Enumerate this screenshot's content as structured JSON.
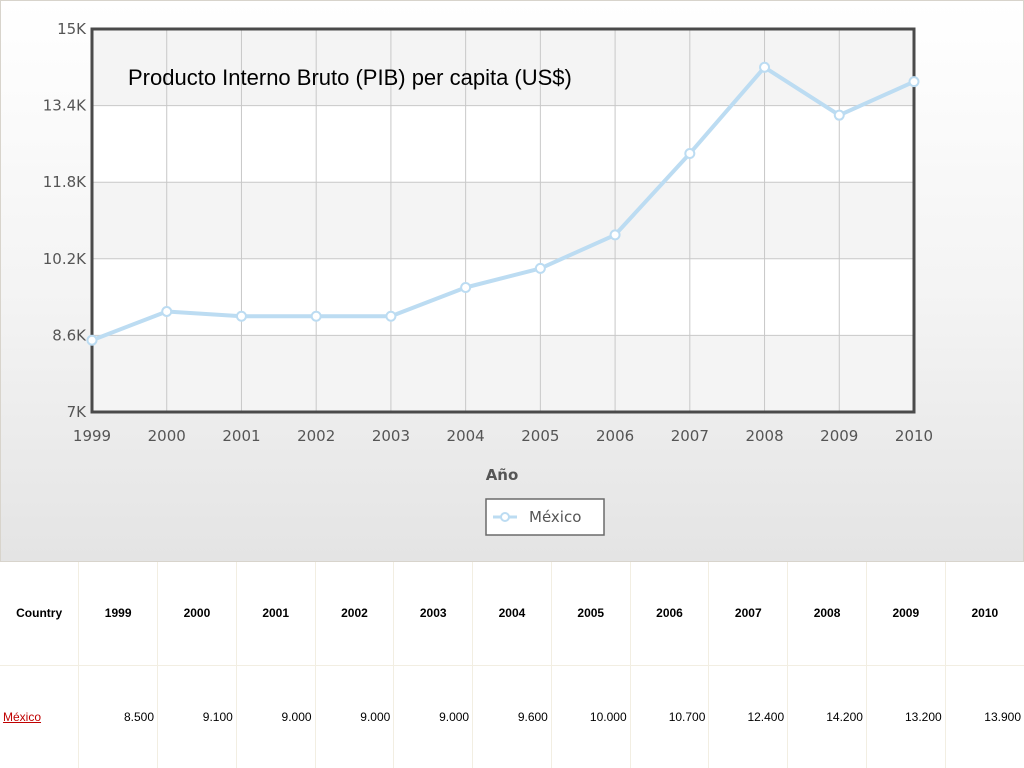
{
  "chart_data": {
    "type": "line",
    "title": "Producto Interno Bruto (PIB) per capita (US$)",
    "xlabel": "Año",
    "ylabel": "",
    "categories": [
      "1999",
      "2000",
      "2001",
      "2002",
      "2003",
      "2004",
      "2005",
      "2006",
      "2007",
      "2008",
      "2009",
      "2010"
    ],
    "series": [
      {
        "name": "México",
        "values": [
          8500,
          9100,
          9000,
          9000,
          9000,
          9600,
          10000,
          10700,
          12400,
          14200,
          13200,
          13900
        ]
      }
    ],
    "ylim": [
      7000,
      15000
    ],
    "yticks": [
      7000,
      8600,
      10200,
      11800,
      13400,
      15000
    ],
    "ytick_labels": [
      "7K",
      "8.6K",
      "10.2K",
      "11.8K",
      "13.4K",
      "15K"
    ],
    "grid": true,
    "legend_position": "bottom-center",
    "colors": {
      "line": "#bcdcf2",
      "marker_fill": "#ffffff",
      "grid": "#c8c8c8",
      "plot_border": "#4a4a4a"
    }
  },
  "table": {
    "header_label": "Country",
    "years": [
      "1999",
      "2000",
      "2001",
      "2002",
      "2003",
      "2004",
      "2005",
      "2006",
      "2007",
      "2008",
      "2009",
      "2010"
    ],
    "rows": [
      {
        "country": "México",
        "values": [
          "8.500",
          "9.100",
          "9.000",
          "9.000",
          "9.000",
          "9.600",
          "10.000",
          "10.700",
          "12.400",
          "14.200",
          "13.200",
          "13.900"
        ]
      }
    ]
  }
}
